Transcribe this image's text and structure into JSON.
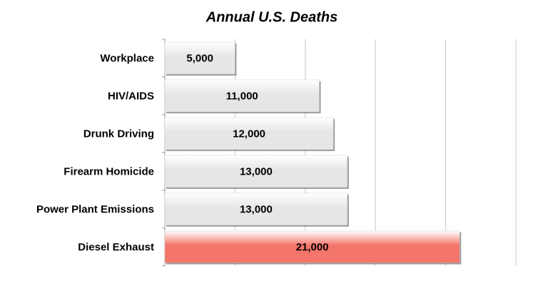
{
  "chart_data": {
    "type": "bar",
    "orientation": "horizontal",
    "title": "Annual U.S. Deaths",
    "categories": [
      "Workplace",
      "HIV/AIDS",
      "Drunk Driving",
      "Firearm Homicide",
      "Power Plant Emissions",
      "Diesel Exhaust"
    ],
    "values": [
      5000,
      11000,
      12000,
      13000,
      13000,
      21000
    ],
    "value_labels": [
      "5,000",
      "11,000",
      "12,000",
      "13,000",
      "13,000",
      "21,000"
    ],
    "colors": [
      "#e6e6e6",
      "#e6e6e6",
      "#e6e6e6",
      "#e6e6e6",
      "#e6e6e6",
      "#f4756a"
    ],
    "xlim": [
      0,
      25000
    ],
    "xticks": [
      0,
      5000,
      10000,
      15000,
      20000,
      25000
    ],
    "grid": true
  }
}
